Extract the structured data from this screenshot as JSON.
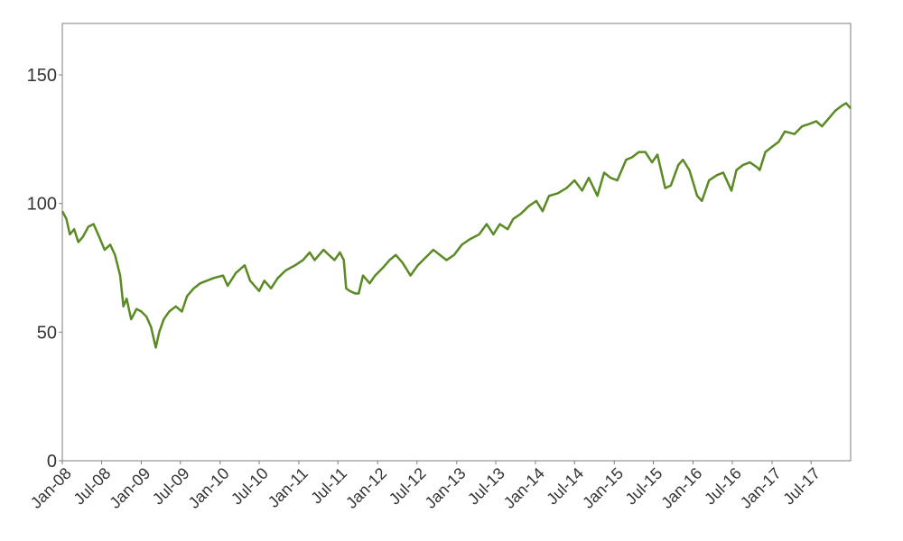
{
  "chart_data": {
    "type": "line",
    "title": "",
    "xlabel": "",
    "ylabel": "",
    "ylim": [
      0,
      170
    ],
    "xlim": [
      "2008-01-01",
      "2017-12-31"
    ],
    "yticks": [
      0,
      50,
      100,
      150
    ],
    "ytick_labels": [
      "0",
      "50",
      "100",
      "150"
    ],
    "xticks": [
      "2008-01-01",
      "2008-07-01",
      "2009-01-01",
      "2009-07-01",
      "2010-01-01",
      "2010-07-01",
      "2011-01-01",
      "2011-07-01",
      "2012-01-01",
      "2012-07-01",
      "2013-01-01",
      "2013-07-01",
      "2014-01-01",
      "2014-07-01",
      "2015-01-01",
      "2015-07-01",
      "2016-01-01",
      "2016-07-01",
      "2017-01-01",
      "2017-07-01"
    ],
    "xtick_labels": [
      "Jan-08",
      "Jul-08",
      "Jan-09",
      "Jul-09",
      "Jan-10",
      "Jul-10",
      "Jan-11",
      "Jul-11",
      "Jan-12",
      "Jul-12",
      "Jan-13",
      "Jul-13",
      "Jan-14",
      "Jul-14",
      "Jan-15",
      "Jul-15",
      "Jan-16",
      "Jul-16",
      "Jan-17",
      "Jul-17"
    ],
    "grid": false,
    "legend": "none",
    "series": [
      {
        "color": "#5a8a23",
        "points": [
          [
            "2008-01-01",
            97
          ],
          [
            "2008-01-20",
            94
          ],
          [
            "2008-02-05",
            88
          ],
          [
            "2008-02-25",
            90
          ],
          [
            "2008-03-15",
            85
          ],
          [
            "2008-04-05",
            87
          ],
          [
            "2008-05-01",
            91
          ],
          [
            "2008-05-25",
            92
          ],
          [
            "2008-06-20",
            87
          ],
          [
            "2008-07-15",
            82
          ],
          [
            "2008-08-10",
            84
          ],
          [
            "2008-09-01",
            80
          ],
          [
            "2008-09-25",
            72
          ],
          [
            "2008-10-10",
            60
          ],
          [
            "2008-10-25",
            63
          ],
          [
            "2008-11-15",
            55
          ],
          [
            "2008-12-10",
            59
          ],
          [
            "2009-01-01",
            58
          ],
          [
            "2009-01-25",
            56
          ],
          [
            "2009-02-15",
            52
          ],
          [
            "2009-03-09",
            44
          ],
          [
            "2009-03-25",
            50
          ],
          [
            "2009-04-15",
            55
          ],
          [
            "2009-05-10",
            58
          ],
          [
            "2009-06-10",
            60
          ],
          [
            "2009-07-08",
            58
          ],
          [
            "2009-08-01",
            64
          ],
          [
            "2009-09-01",
            67
          ],
          [
            "2009-10-01",
            69
          ],
          [
            "2009-11-01",
            70
          ],
          [
            "2009-12-01",
            71
          ],
          [
            "2010-01-15",
            72
          ],
          [
            "2010-02-05",
            68
          ],
          [
            "2010-03-15",
            73
          ],
          [
            "2010-04-25",
            76
          ],
          [
            "2010-05-20",
            70
          ],
          [
            "2010-07-01",
            66
          ],
          [
            "2010-07-25",
            70
          ],
          [
            "2010-08-25",
            67
          ],
          [
            "2010-09-25",
            71
          ],
          [
            "2010-11-01",
            74
          ],
          [
            "2010-12-15",
            76
          ],
          [
            "2011-01-20",
            78
          ],
          [
            "2011-02-20",
            81
          ],
          [
            "2011-03-15",
            78
          ],
          [
            "2011-04-25",
            82
          ],
          [
            "2011-05-20",
            80
          ],
          [
            "2011-06-15",
            78
          ],
          [
            "2011-07-10",
            81
          ],
          [
            "2011-07-28",
            78
          ],
          [
            "2011-08-08",
            67
          ],
          [
            "2011-08-25",
            66
          ],
          [
            "2011-09-20",
            65
          ],
          [
            "2011-10-05",
            65
          ],
          [
            "2011-10-25",
            72
          ],
          [
            "2011-11-25",
            69
          ],
          [
            "2011-12-20",
            72
          ],
          [
            "2012-01-25",
            75
          ],
          [
            "2012-02-25",
            78
          ],
          [
            "2012-03-25",
            80
          ],
          [
            "2012-04-25",
            77
          ],
          [
            "2012-06-01",
            72
          ],
          [
            "2012-07-05",
            76
          ],
          [
            "2012-08-10",
            79
          ],
          [
            "2012-09-15",
            82
          ],
          [
            "2012-10-15",
            80
          ],
          [
            "2012-11-15",
            78
          ],
          [
            "2012-12-20",
            80
          ],
          [
            "2013-01-25",
            84
          ],
          [
            "2013-03-01",
            86
          ],
          [
            "2013-04-15",
            88
          ],
          [
            "2013-05-20",
            92
          ],
          [
            "2013-06-20",
            88
          ],
          [
            "2013-07-20",
            92
          ],
          [
            "2013-08-25",
            90
          ],
          [
            "2013-09-20",
            94
          ],
          [
            "2013-10-25",
            96
          ],
          [
            "2013-12-01",
            99
          ],
          [
            "2014-01-05",
            101
          ],
          [
            "2014-02-03",
            97
          ],
          [
            "2014-03-05",
            103
          ],
          [
            "2014-04-15",
            104
          ],
          [
            "2014-05-25",
            106
          ],
          [
            "2014-07-01",
            109
          ],
          [
            "2014-08-05",
            105
          ],
          [
            "2014-09-05",
            110
          ],
          [
            "2014-10-15",
            103
          ],
          [
            "2014-11-15",
            112
          ],
          [
            "2014-12-15",
            110
          ],
          [
            "2015-01-15",
            109
          ],
          [
            "2015-02-25",
            117
          ],
          [
            "2015-03-25",
            118
          ],
          [
            "2015-04-25",
            120
          ],
          [
            "2015-05-25",
            120
          ],
          [
            "2015-06-25",
            116
          ],
          [
            "2015-07-20",
            119
          ],
          [
            "2015-08-25",
            106
          ],
          [
            "2015-09-20",
            107
          ],
          [
            "2015-10-25",
            115
          ],
          [
            "2015-11-15",
            117
          ],
          [
            "2015-12-15",
            113
          ],
          [
            "2016-01-20",
            103
          ],
          [
            "2016-02-11",
            101
          ],
          [
            "2016-03-15",
            109
          ],
          [
            "2016-04-20",
            111
          ],
          [
            "2016-05-20",
            112
          ],
          [
            "2016-06-27",
            105
          ],
          [
            "2016-07-20",
            113
          ],
          [
            "2016-08-20",
            115
          ],
          [
            "2016-09-20",
            116
          ],
          [
            "2016-10-25",
            114
          ],
          [
            "2016-11-05",
            113
          ],
          [
            "2016-12-01",
            120
          ],
          [
            "2016-12-31",
            122
          ],
          [
            "2017-02-01",
            124
          ],
          [
            "2017-03-01",
            128
          ],
          [
            "2017-04-15",
            127
          ],
          [
            "2017-05-20",
            130
          ],
          [
            "2017-06-25",
            131
          ],
          [
            "2017-07-25",
            132
          ],
          [
            "2017-08-20",
            130
          ],
          [
            "2017-09-20",
            133
          ],
          [
            "2017-10-20",
            136
          ],
          [
            "2017-11-20",
            138
          ],
          [
            "2017-12-10",
            139
          ],
          [
            "2017-12-31",
            137
          ]
        ]
      }
    ]
  }
}
